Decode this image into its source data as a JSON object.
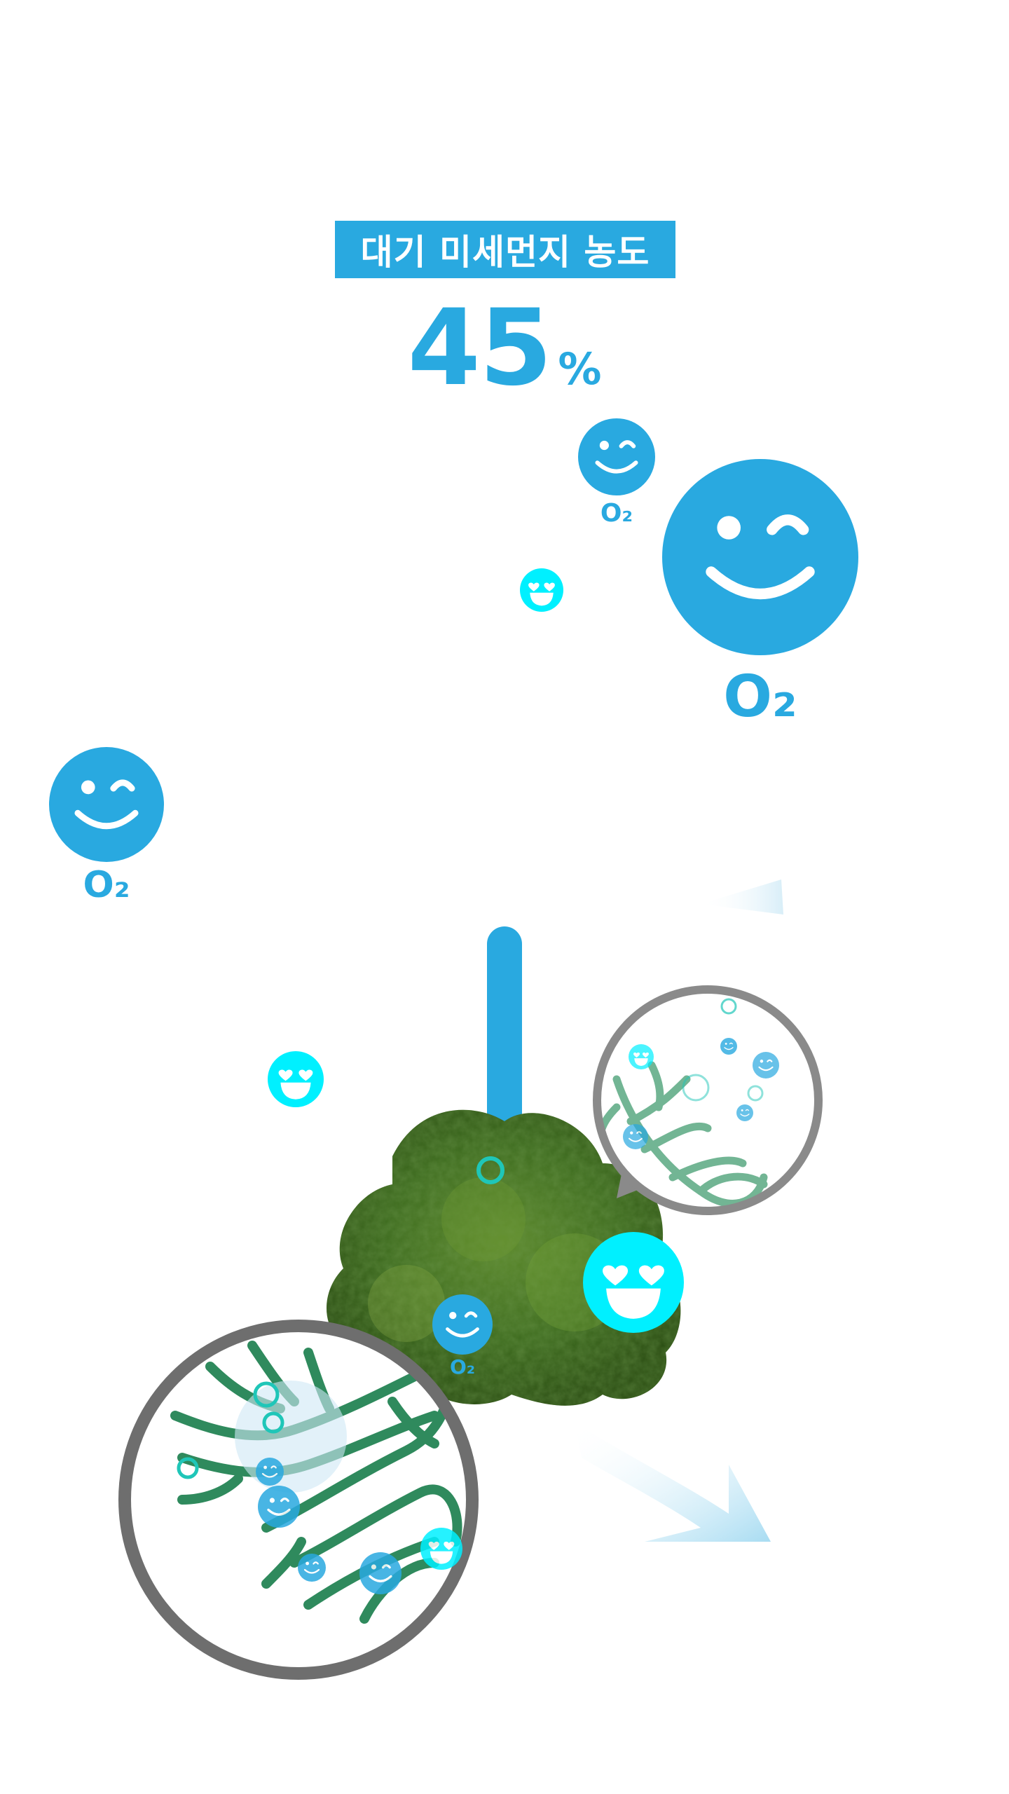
{
  "header": {
    "title": "대기 미세먼지 농도",
    "percentage_value": "45",
    "percentage_unit": "%"
  },
  "gauge": {
    "level": 0.45
  },
  "labels": {
    "o2": "O₂"
  },
  "colors": {
    "brand_blue": "#29a9e0",
    "cyan": "#00f0ff",
    "leaf_green": "#2e8b57",
    "ring_gray": "#6e6e6e",
    "arrow_light_blue": "#a8dcf2"
  },
  "icons": [
    "wink-smiley-icon",
    "heart-eyes-smiley-icon",
    "o2-molecule-icon",
    "tree-icon",
    "leaf-vein-icon",
    "magnifier-lens-icon",
    "arrow-icon"
  ]
}
